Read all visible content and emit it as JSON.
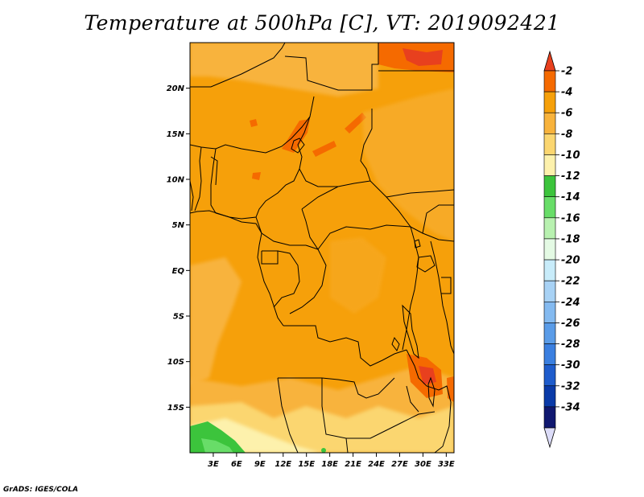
{
  "title": "Temperature at 500hPa [C], VT: 2019092421",
  "credit": "GrADS: IGES/COLA",
  "map": {
    "lon_range": [
      0,
      34
    ],
    "lat_range": [
      -20,
      25
    ],
    "lat_ticks": [
      "20N",
      "15N",
      "10N",
      "5N",
      "EQ",
      "5S",
      "10S",
      "15S"
    ],
    "lon_ticks": [
      "3E",
      "6E",
      "9E",
      "12E",
      "15E",
      "18E",
      "21E",
      "24E",
      "27E",
      "30E",
      "33E"
    ]
  },
  "colorbar": {
    "labels": [
      "-2",
      "-4",
      "-6",
      "-8",
      "-10",
      "-12",
      "-14",
      "-16",
      "-18",
      "-20",
      "-22",
      "-24",
      "-26",
      "-28",
      "-30",
      "-32",
      "-34"
    ],
    "colors": [
      "#e8401e",
      "#f56a00",
      "#f6a00a",
      "#f8b33c",
      "#fbd670",
      "#fdf1ac",
      "#3cc43c",
      "#68dd68",
      "#b8f1b0",
      "#e4fae4",
      "#c8ecfa",
      "#a8d2f5",
      "#84baf0",
      "#5a9ce8",
      "#3a7fe0",
      "#1e5ccc",
      "#0a3aa8",
      "#101870",
      "#dcdcf8"
    ]
  }
}
